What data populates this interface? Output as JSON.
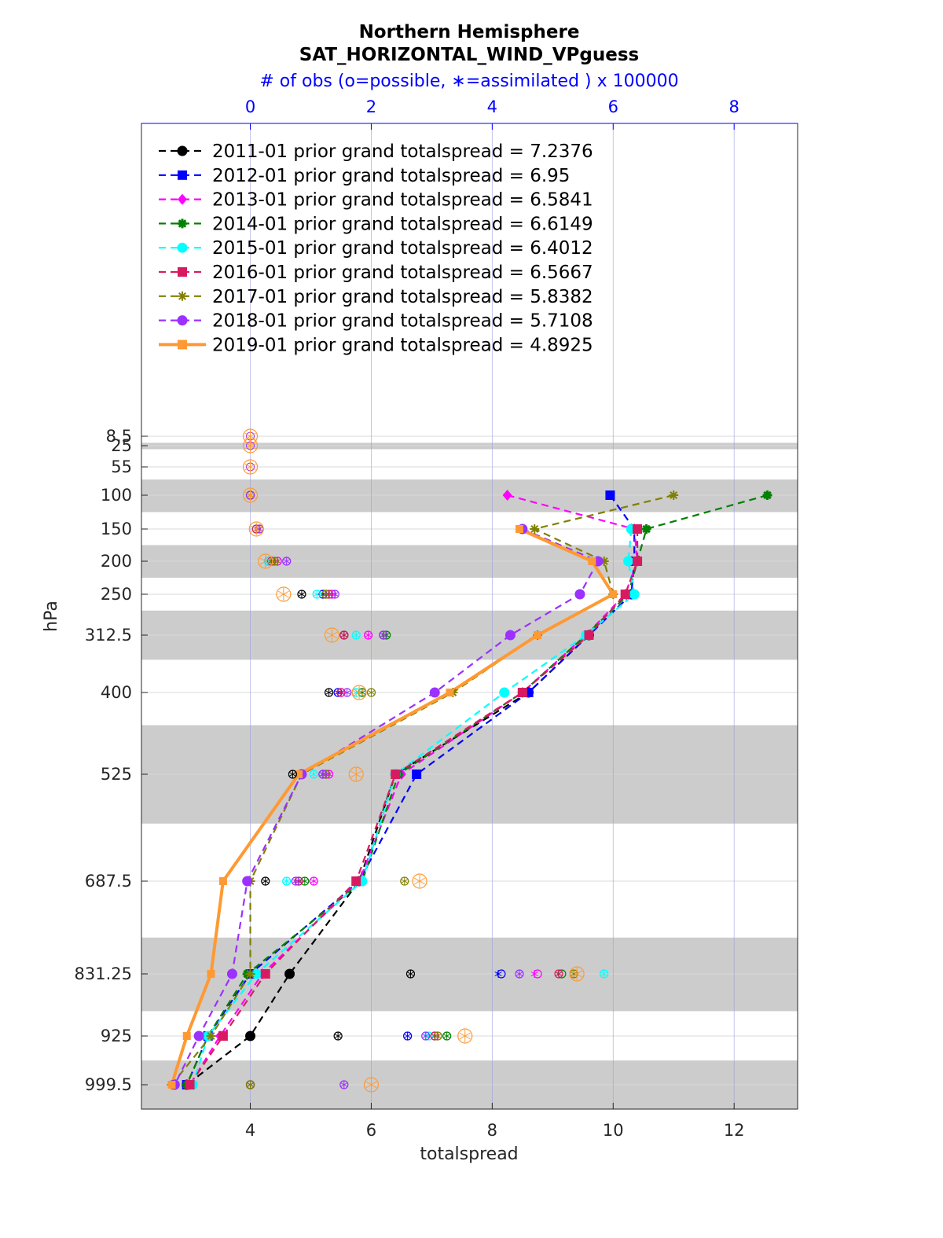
{
  "chart_data": {
    "type": "line",
    "title": "Northern Hemisphere",
    "subtitle": "SAT_HORIZONTAL_WIND_VPguess",
    "top_axis_label": "# of obs (o=possible, ∗=assimilated ) x 100000",
    "top_axis_color": "#0000ff",
    "xlabel": "totalspread",
    "ylabel": "hPa",
    "xlim": [
      2.2,
      13.05
    ],
    "top_xlim": [
      -1.8,
      9.05
    ],
    "y_axis_reversed": true,
    "x_ticks": [
      "4",
      "6",
      "8",
      "10",
      "12"
    ],
    "top_ticks": [
      "0",
      "2",
      "4",
      "6",
      "8"
    ],
    "levels": [
      "8.5",
      "25",
      "55",
      "100",
      "150",
      "200",
      "250",
      "312.5",
      "400",
      "525",
      "687.5",
      "831.25",
      "925",
      "999.5"
    ],
    "level_values": [
      8.5,
      25,
      55,
      100,
      150,
      200,
      250,
      312.5,
      400,
      525,
      687.5,
      831.25,
      925,
      999.5
    ],
    "layer_bounds_shaded": [
      [
        20,
        30
      ],
      [
        75,
        125
      ],
      [
        175,
        225
      ],
      [
        275,
        350
      ],
      [
        450,
        600
      ],
      [
        775,
        887.5
      ],
      [
        962.5,
        1037
      ]
    ],
    "legend_position": "top-left",
    "grid": true,
    "series": [
      {
        "name": "2011-01 prior grand totalspread = 7.2376",
        "color": "#000000",
        "style": "dashed",
        "marker": "circle",
        "levels": [
          250,
          312.5,
          400,
          525,
          687.5,
          831.25,
          925,
          999.5
        ],
        "values": [
          10.3,
          9.6,
          8.6,
          6.4,
          5.8,
          4.65,
          4.0,
          2.95
        ],
        "obs_possible": [
          0.85,
          1.55,
          1.3,
          0.7,
          0.25,
          2.65,
          1.45,
          0
        ],
        "obs_assimilated": [
          0.85,
          1.55,
          1.3,
          0.7,
          0.25,
          2.65,
          1.45,
          0
        ]
      },
      {
        "name": "2012-01 prior grand totalspread = 6.95",
        "color": "#0000ff",
        "style": "dashed",
        "marker": "square",
        "levels": [
          100,
          150,
          200,
          250,
          312.5,
          400,
          525,
          687.5,
          831.25,
          925,
          999.5
        ],
        "values": [
          9.95,
          10.35,
          10.35,
          10.3,
          9.6,
          8.6,
          6.75,
          5.8,
          4.0,
          3.3,
          2.95
        ],
        "obs_possible": [
          0,
          0.1,
          0.3,
          1.2,
          2.2,
          1.45,
          1.2,
          0.8,
          4.15,
          2.6,
          0
        ],
        "obs_assimilated": [
          0,
          0.1,
          0.3,
          1.2,
          2.2,
          1.45,
          1.2,
          0.8,
          4.1,
          2.6,
          0
        ]
      },
      {
        "name": "2013-01 prior grand totalspread = 6.5841",
        "color": "#ff00ff",
        "style": "dashed",
        "marker": "diamond",
        "levels": [
          100,
          150,
          200,
          250,
          312.5,
          400,
          525,
          687.5,
          831.25,
          925,
          999.5
        ],
        "values": [
          8.25,
          10.35,
          10.4,
          10.2,
          9.55,
          8.5,
          6.5,
          5.8,
          4.2,
          3.5,
          3.0
        ],
        "obs_possible": [
          0,
          0.1,
          0.45,
          1.35,
          1.95,
          1.5,
          1.3,
          1.05,
          4.75,
          3.05,
          0
        ],
        "obs_assimilated": [
          0,
          0.1,
          0.45,
          1.35,
          1.95,
          1.5,
          1.3,
          1.05,
          4.7,
          3.05,
          0
        ]
      },
      {
        "name": "2014-01 prior grand totalspread = 6.6149",
        "color": "#008000",
        "style": "dashed",
        "marker": "star",
        "levels": [
          100,
          150,
          200,
          250,
          312.5,
          400,
          525,
          687.5,
          831.25,
          925,
          999.5
        ],
        "values": [
          12.55,
          10.55,
          10.4,
          10.25,
          9.55,
          8.5,
          6.45,
          5.85,
          3.95,
          3.3,
          2.95
        ],
        "obs_possible": [
          0,
          0.1,
          0.35,
          1.25,
          2.25,
          1.85,
          1.25,
          0.9,
          5.15,
          3.25,
          0
        ],
        "obs_assimilated": [
          0,
          0.1,
          0.35,
          1.25,
          2.25,
          1.85,
          1.25,
          0.9,
          5.1,
          3.25,
          0
        ]
      },
      {
        "name": "2015-01 prior grand totalspread = 6.4012",
        "color": "#00ffff",
        "style": "dashed",
        "marker": "circle",
        "levels": [
          150,
          200,
          250,
          312.5,
          400,
          525,
          687.5,
          831.25,
          925,
          999.5
        ],
        "values": [
          10.3,
          10.25,
          10.35,
          9.55,
          8.2,
          6.4,
          5.85,
          4.1,
          3.3,
          3.05
        ],
        "obs_possible": [
          0.1,
          0.3,
          1.1,
          1.75,
          1.75,
          1.05,
          0.6,
          5.85,
          2.95,
          0
        ],
        "obs_assimilated": [
          0.1,
          0.3,
          1.1,
          1.75,
          1.75,
          1.05,
          0.6,
          5.85,
          2.95,
          0
        ]
      },
      {
        "name": "2016-01 prior grand totalspread = 6.5667",
        "color": "#d81b60",
        "style": "dashed",
        "marker": "square",
        "levels": [
          150,
          200,
          250,
          312.5,
          400,
          525,
          687.5,
          831.25,
          925,
          999.5
        ],
        "values": [
          10.4,
          10.4,
          10.2,
          9.6,
          8.5,
          6.4,
          5.75,
          4.25,
          3.55,
          3.0
        ],
        "obs_possible": [
          0.1,
          0.35,
          1.3,
          1.55,
          1.5,
          1.25,
          0.8,
          5.1,
          3.05,
          0
        ],
        "obs_assimilated": [
          0.1,
          0.35,
          1.3,
          1.55,
          1.5,
          1.25,
          0.8,
          5.1,
          3.05,
          0
        ]
      },
      {
        "name": "2017-01 prior grand totalspread = 5.8382",
        "color": "#808000",
        "style": "dashed",
        "marker": "asterisk",
        "levels": [
          100,
          150,
          200,
          250,
          312.5,
          400,
          525,
          687.5,
          831.25,
          925,
          999.5
        ],
        "values": [
          11.0,
          8.7,
          9.85,
          10.0,
          8.75,
          7.35,
          4.85,
          4.0,
          4.0,
          3.35,
          2.7
        ],
        "obs_possible": [
          0,
          0.15,
          0.4,
          1.25,
          2.2,
          2.0,
          1.25,
          2.55,
          5.35,
          3.1,
          0
        ],
        "obs_assimilated": [
          0,
          0.15,
          0.4,
          1.25,
          2.2,
          2.0,
          1.25,
          2.55,
          5.35,
          3.1,
          0
        ]
      },
      {
        "name": "2018-01 prior grand totalspread = 5.7108",
        "color": "#9b30ff",
        "style": "dashed",
        "marker": "circle",
        "levels": [
          150,
          200,
          250,
          312.5,
          400,
          525,
          687.5,
          831.25,
          925,
          999.5
        ],
        "values": [
          8.5,
          9.75,
          9.45,
          8.3,
          7.05,
          4.85,
          3.95,
          3.7,
          3.15,
          2.75
        ],
        "obs_possible": [
          0.15,
          0.6,
          1.4,
          2.2,
          1.6,
          1.2,
          0.75,
          4.45,
          2.9,
          1.55
        ],
        "obs_assimilated": [
          0.15,
          0.6,
          1.4,
          2.2,
          1.6,
          1.2,
          0.75,
          4.45,
          2.9,
          1.55
        ]
      },
      {
        "name": "2019-01 prior grand totalspread = 4.8925",
        "color": "#ff9933",
        "style": "solid",
        "marker": "square",
        "levels": [
          150,
          200,
          250,
          312.5,
          400,
          525,
          687.5,
          831.25,
          925,
          999.5
        ],
        "values": [
          8.45,
          9.65,
          10.0,
          8.75,
          7.3,
          4.8,
          3.55,
          3.35,
          2.95,
          2.7
        ],
        "obs_possible": [
          0.1,
          0.25,
          0.55,
          1.35,
          1.8,
          1.75,
          2.8,
          5.4,
          3.55,
          2.0
        ],
        "obs_assimilated": [
          0.1,
          0.25,
          0.55,
          1.35,
          1.8,
          1.75,
          2.8,
          5.4,
          3.55,
          2.0
        ]
      }
    ],
    "obs_orange_top_levels": {
      "levels": [
        8.5,
        25,
        55,
        100
      ],
      "obs_possible": [
        0,
        0,
        0,
        0
      ],
      "color": "#ff9933"
    }
  }
}
